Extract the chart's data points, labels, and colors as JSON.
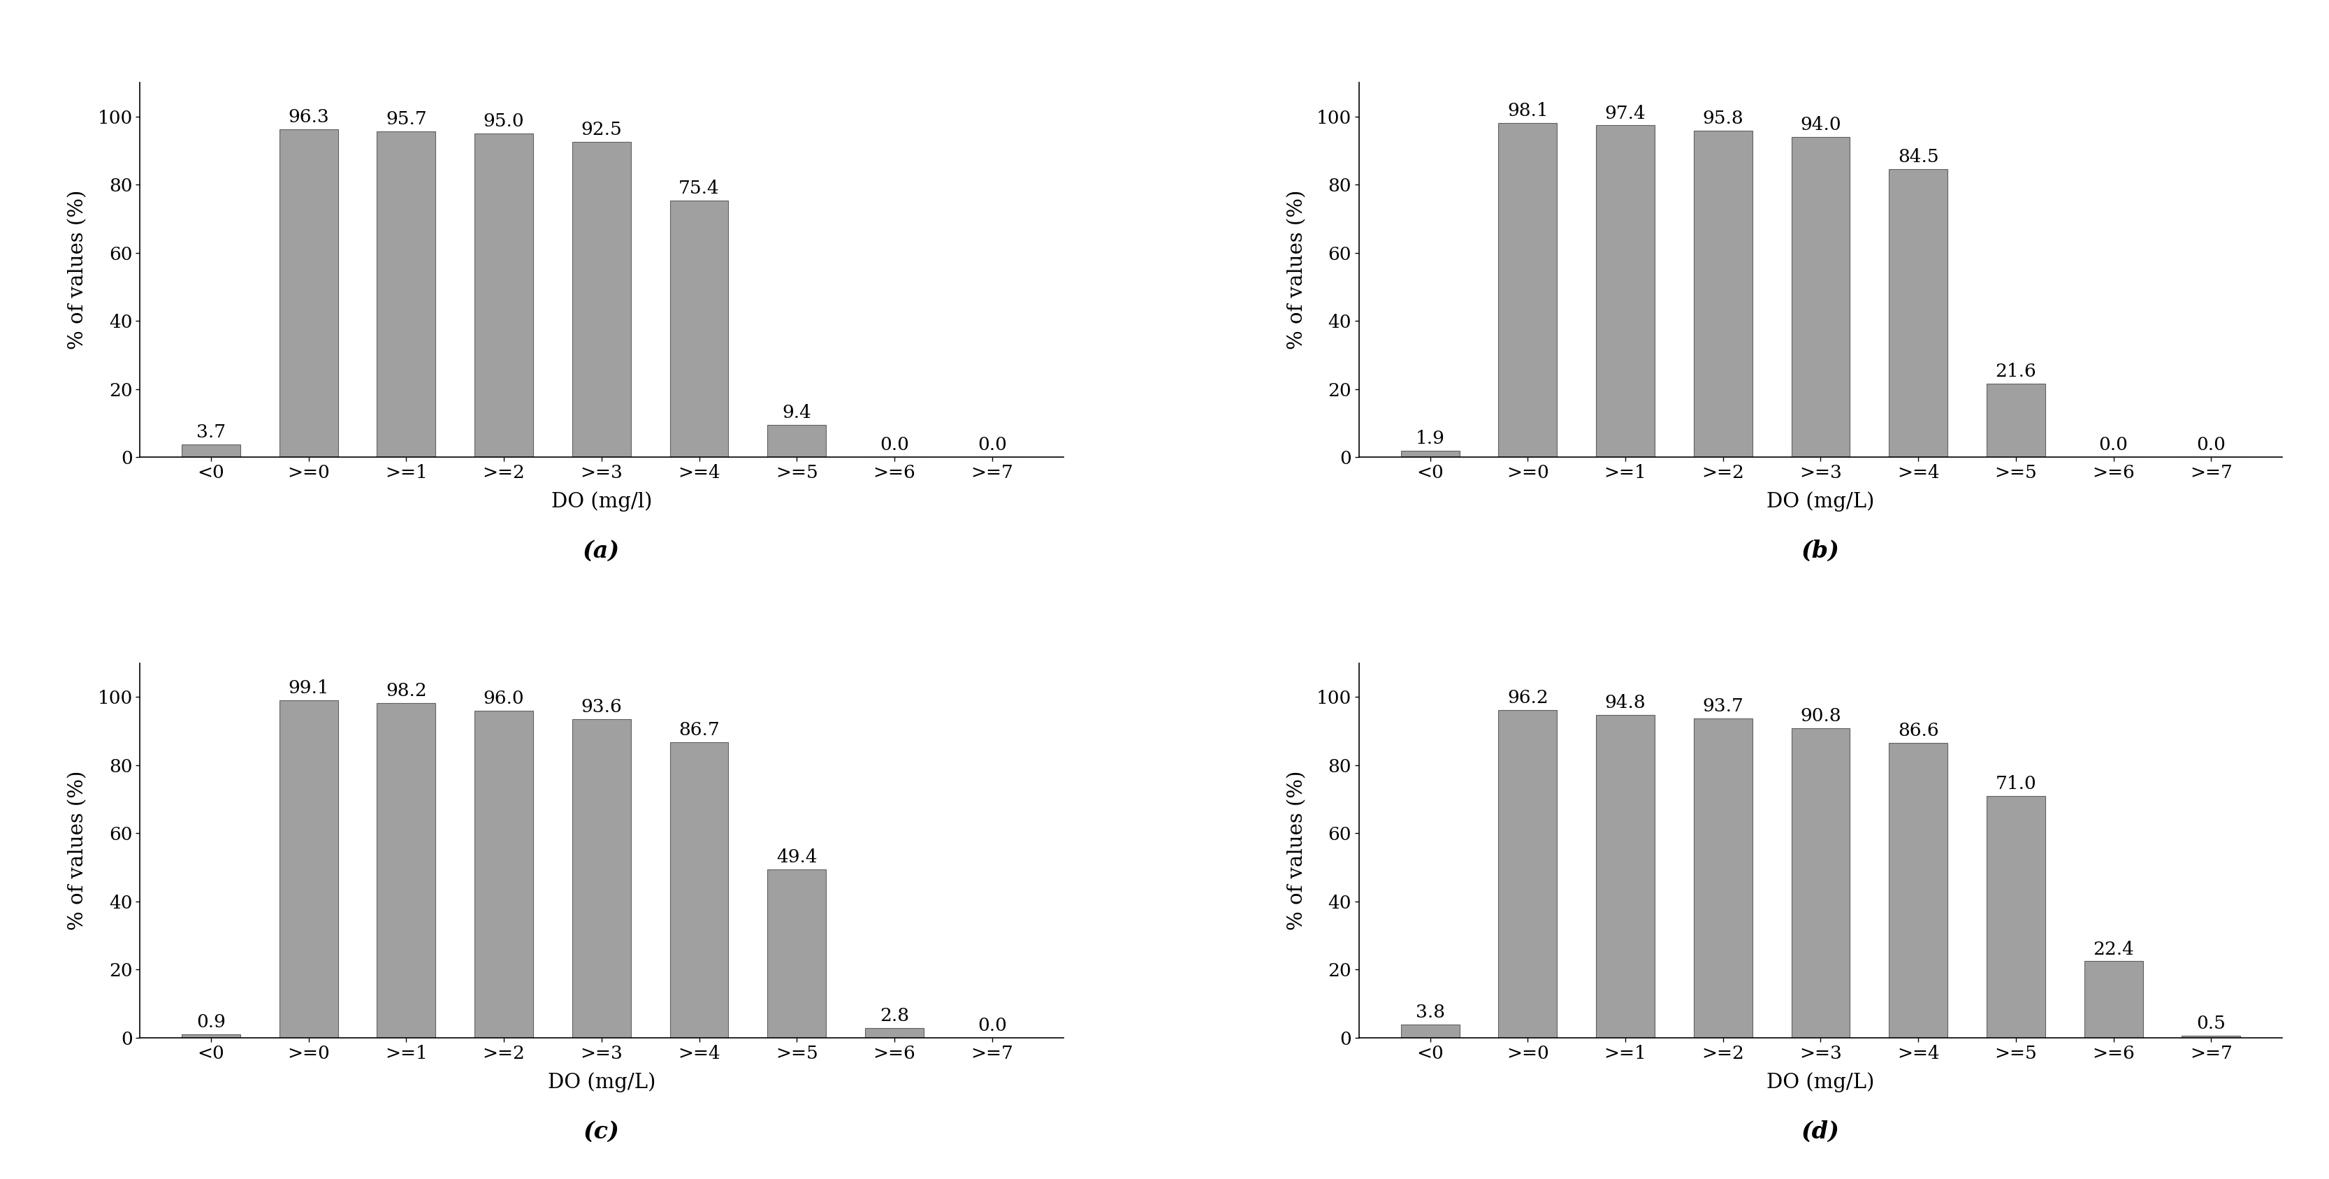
{
  "subplots": [
    {
      "label": "(a)",
      "xlabel": "DO (mg/l)",
      "categories": [
        "<0",
        ">=0",
        ">=1",
        ">=2",
        ">=3",
        ">=4",
        ">=5",
        ">=6",
        ">=7"
      ],
      "values": [
        3.7,
        96.3,
        95.7,
        95.0,
        92.5,
        75.4,
        9.4,
        0.0,
        0.0
      ]
    },
    {
      "label": "(b)",
      "xlabel": "DO (mg/L)",
      "categories": [
        "<0",
        ">=0",
        ">=1",
        ">=2",
        ">=3",
        ">=4",
        ">=5",
        ">=6",
        ">=7"
      ],
      "values": [
        1.9,
        98.1,
        97.4,
        95.8,
        94.0,
        84.5,
        21.6,
        0.0,
        0.0
      ]
    },
    {
      "label": "(c)",
      "xlabel": "DO (mg/L)",
      "categories": [
        "<0",
        ">=0",
        ">=1",
        ">=2",
        ">=3",
        ">=4",
        ">=5",
        ">=6",
        ">=7"
      ],
      "values": [
        0.9,
        99.1,
        98.2,
        96.0,
        93.6,
        86.7,
        49.4,
        2.8,
        0.0
      ]
    },
    {
      "label": "(d)",
      "xlabel": "DO (mg/L)",
      "categories": [
        "<0",
        ">=0",
        ">=1",
        ">=2",
        ">=3",
        ">=4",
        ">=5",
        ">=6",
        ">=7"
      ],
      "values": [
        3.8,
        96.2,
        94.8,
        93.7,
        90.8,
        86.6,
        71.0,
        22.4,
        0.5
      ]
    }
  ],
  "ylabel": "% of values (%)",
  "ylim": [
    0,
    110
  ],
  "yticks": [
    0,
    20,
    40,
    60,
    80,
    100
  ],
  "bar_color": "#a0a0a0",
  "bar_edgecolor": "#606060",
  "tick_fontsize": 19,
  "axis_label_fontsize": 21,
  "subplot_label_fontsize": 24,
  "annotation_fontsize": 19,
  "background_color": "#ffffff"
}
